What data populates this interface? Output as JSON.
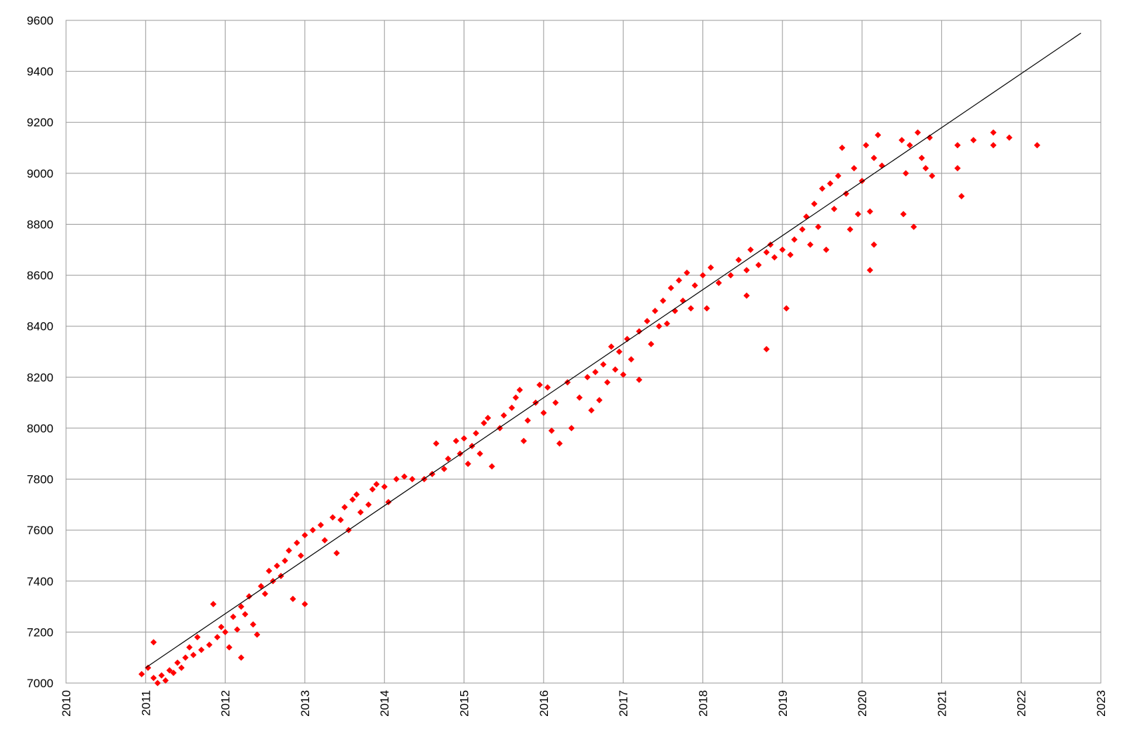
{
  "chart_data": {
    "type": "scatter",
    "series": [
      {
        "color": "#ff0000",
        "x": [
          2010.95,
          2011.03,
          2011.1,
          2011.1,
          2011.15,
          2011.2,
          2011.25,
          2011.3,
          2011.35,
          2011.4,
          2011.45,
          2011.5,
          2011.55,
          2011.6,
          2011.65,
          2011.7,
          2011.8,
          2011.85,
          2011.9,
          2011.95,
          2012.0,
          2012.05,
          2012.1,
          2012.15,
          2012.2,
          2012.2,
          2012.25,
          2012.3,
          2012.35,
          2012.4,
          2012.45,
          2012.5,
          2012.55,
          2012.6,
          2012.65,
          2012.7,
          2012.75,
          2012.8,
          2012.85,
          2012.9,
          2012.95,
          2013.0,
          2013.0,
          2013.1,
          2013.2,
          2013.25,
          2013.35,
          2013.4,
          2013.45,
          2013.5,
          2013.55,
          2013.6,
          2013.65,
          2013.7,
          2013.8,
          2013.85,
          2013.9,
          2014.0,
          2014.05,
          2014.15,
          2014.25,
          2014.35,
          2014.5,
          2014.6,
          2014.65,
          2014.75,
          2014.8,
          2014.9,
          2014.95,
          2015.0,
          2015.05,
          2015.1,
          2015.15,
          2015.2,
          2015.25,
          2015.3,
          2015.35,
          2015.45,
          2015.5,
          2015.6,
          2015.65,
          2015.7,
          2015.75,
          2015.8,
          2015.9,
          2015.95,
          2016.0,
          2016.05,
          2016.1,
          2016.15,
          2016.2,
          2016.3,
          2016.35,
          2016.45,
          2016.55,
          2016.6,
          2016.65,
          2016.7,
          2016.75,
          2016.8,
          2016.85,
          2016.9,
          2016.95,
          2017.0,
          2017.05,
          2017.1,
          2017.2,
          2017.2,
          2017.3,
          2017.35,
          2017.4,
          2017.45,
          2017.5,
          2017.55,
          2017.6,
          2017.65,
          2017.7,
          2017.75,
          2017.8,
          2017.85,
          2017.9,
          2018.0,
          2018.05,
          2018.1,
          2018.2,
          2018.35,
          2018.45,
          2018.55,
          2018.55,
          2018.6,
          2018.7,
          2018.8,
          2018.8,
          2018.85,
          2018.9,
          2019.0,
          2019.05,
          2019.1,
          2019.15,
          2019.25,
          2019.3,
          2019.35,
          2019.4,
          2019.45,
          2019.5,
          2019.55,
          2019.6,
          2019.65,
          2019.7,
          2019.75,
          2019.8,
          2019.85,
          2019.9,
          2019.95,
          2020.0,
          2020.05,
          2020.1,
          2020.1,
          2020.15,
          2020.15,
          2020.2,
          2020.25,
          2020.5,
          2020.52,
          2020.55,
          2020.6,
          2020.65,
          2020.7,
          2020.75,
          2020.8,
          2020.85,
          2020.88,
          2021.2,
          2021.2,
          2021.25,
          2021.4,
          2021.65,
          2021.65,
          2021.85,
          2022.2
        ],
        "values": [
          7035,
          7060,
          7160,
          7020,
          7000,
          7030,
          7010,
          7050,
          7040,
          7080,
          7060,
          7100,
          7140,
          7110,
          7180,
          7130,
          7150,
          7310,
          7180,
          7220,
          7200,
          7140,
          7260,
          7210,
          7300,
          7100,
          7270,
          7340,
          7230,
          7190,
          7380,
          7350,
          7440,
          7400,
          7460,
          7420,
          7480,
          7520,
          7330,
          7550,
          7500,
          7310,
          7580,
          7600,
          7620,
          7560,
          7650,
          7510,
          7640,
          7690,
          7600,
          7720,
          7740,
          7670,
          7700,
          7760,
          7780,
          7770,
          7710,
          7800,
          7810,
          7800,
          7800,
          7820,
          7940,
          7840,
          7880,
          7950,
          7900,
          7960,
          7860,
          7930,
          7980,
          7900,
          8020,
          8040,
          7850,
          8000,
          8050,
          8080,
          8120,
          8150,
          7950,
          8030,
          8100,
          8170,
          8060,
          8160,
          7990,
          8100,
          7940,
          8180,
          8000,
          8120,
          8200,
          8070,
          8220,
          8110,
          8250,
          8180,
          8320,
          8230,
          8300,
          8210,
          8350,
          8270,
          8380,
          8190,
          8420,
          8330,
          8460,
          8400,
          8500,
          8410,
          8550,
          8460,
          8580,
          8500,
          8610,
          8470,
          8560,
          8600,
          8470,
          8630,
          8570,
          8600,
          8660,
          8620,
          8520,
          8700,
          8640,
          8690,
          8310,
          8720,
          8670,
          8700,
          8470,
          8680,
          8740,
          8780,
          8830,
          8720,
          8880,
          8790,
          8940,
          8700,
          8960,
          8860,
          8990,
          9100,
          8920,
          8780,
          9020,
          8840,
          8970,
          9110,
          8850,
          8620,
          9060,
          8720,
          9150,
          9030,
          9130,
          8840,
          9000,
          9110,
          8790,
          9160,
          9060,
          9020,
          9140,
          8990,
          9110,
          9020,
          8910,
          9130,
          9160,
          9110,
          9140,
          9110
        ]
      }
    ],
    "trendline": {
      "color": "#000000",
      "x": [
        2011,
        2022.75
      ],
      "values": [
        7060,
        9550
      ]
    },
    "xlim": [
      2010,
      2023
    ],
    "xticks": [
      2010,
      2011,
      2012,
      2013,
      2014,
      2015,
      2016,
      2017,
      2018,
      2019,
      2020,
      2021,
      2022,
      2023
    ],
    "ylim": [
      7000,
      9600
    ],
    "yticks": [
      7000,
      7200,
      7400,
      7600,
      7800,
      8000,
      8200,
      8400,
      8600,
      8800,
      9000,
      9200,
      9400,
      9600
    ],
    "grid": true
  }
}
